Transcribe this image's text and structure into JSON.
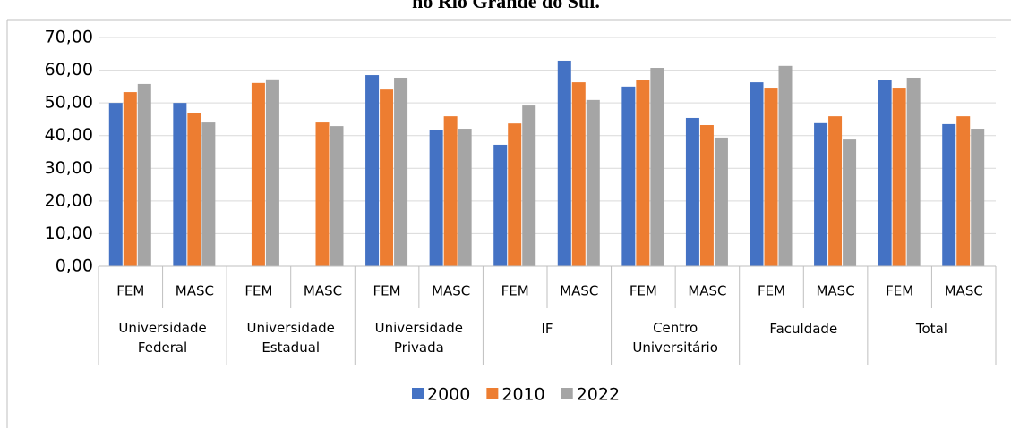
{
  "chart_data": {
    "type": "bar",
    "title": "no Rio Grande do Sul.",
    "categories": [
      "FEM",
      "MASC",
      "FEM",
      "MASC",
      "FEM",
      "MASC",
      "FEM",
      "MASC",
      "FEM",
      "MASC",
      "FEM",
      "MASC",
      "FEM",
      "MASC"
    ],
    "groups": [
      "Universidade Federal",
      "Universidade Estadual",
      "Universidade Privada",
      "IF",
      "Centro Universitário",
      "Faculdade",
      "Total"
    ],
    "series": [
      {
        "name": "2000",
        "color": "#4472c4",
        "values": [
          50.0,
          50.0,
          null,
          null,
          58.5,
          41.6,
          37.2,
          62.9,
          55.0,
          45.4,
          56.3,
          43.8,
          56.9,
          43.5
        ]
      },
      {
        "name": "2010",
        "color": "#ed7d31",
        "values": [
          53.3,
          46.8,
          56.1,
          44.0,
          54.1,
          45.9,
          43.7,
          56.3,
          56.9,
          43.2,
          54.4,
          45.9,
          54.4,
          45.9
        ]
      },
      {
        "name": "2022",
        "color": "#a5a5a5",
        "values": [
          55.8,
          44.0,
          57.2,
          42.9,
          57.7,
          42.1,
          49.2,
          50.9,
          60.7,
          39.4,
          61.3,
          38.8,
          57.7,
          42.1
        ]
      }
    ],
    "ylim": [
      0,
      70
    ],
    "yticks": [
      {
        "value": 0,
        "label": "0,00"
      },
      {
        "value": 10,
        "label": "10,00"
      },
      {
        "value": 20,
        "label": "20,00"
      },
      {
        "value": 30,
        "label": "30,00"
      },
      {
        "value": 40,
        "label": "40,00"
      },
      {
        "value": 50,
        "label": "50,00"
      },
      {
        "value": 60,
        "label": "60,00"
      },
      {
        "value": 70,
        "label": "70,00"
      }
    ],
    "grid": true,
    "legend": "bottom"
  }
}
